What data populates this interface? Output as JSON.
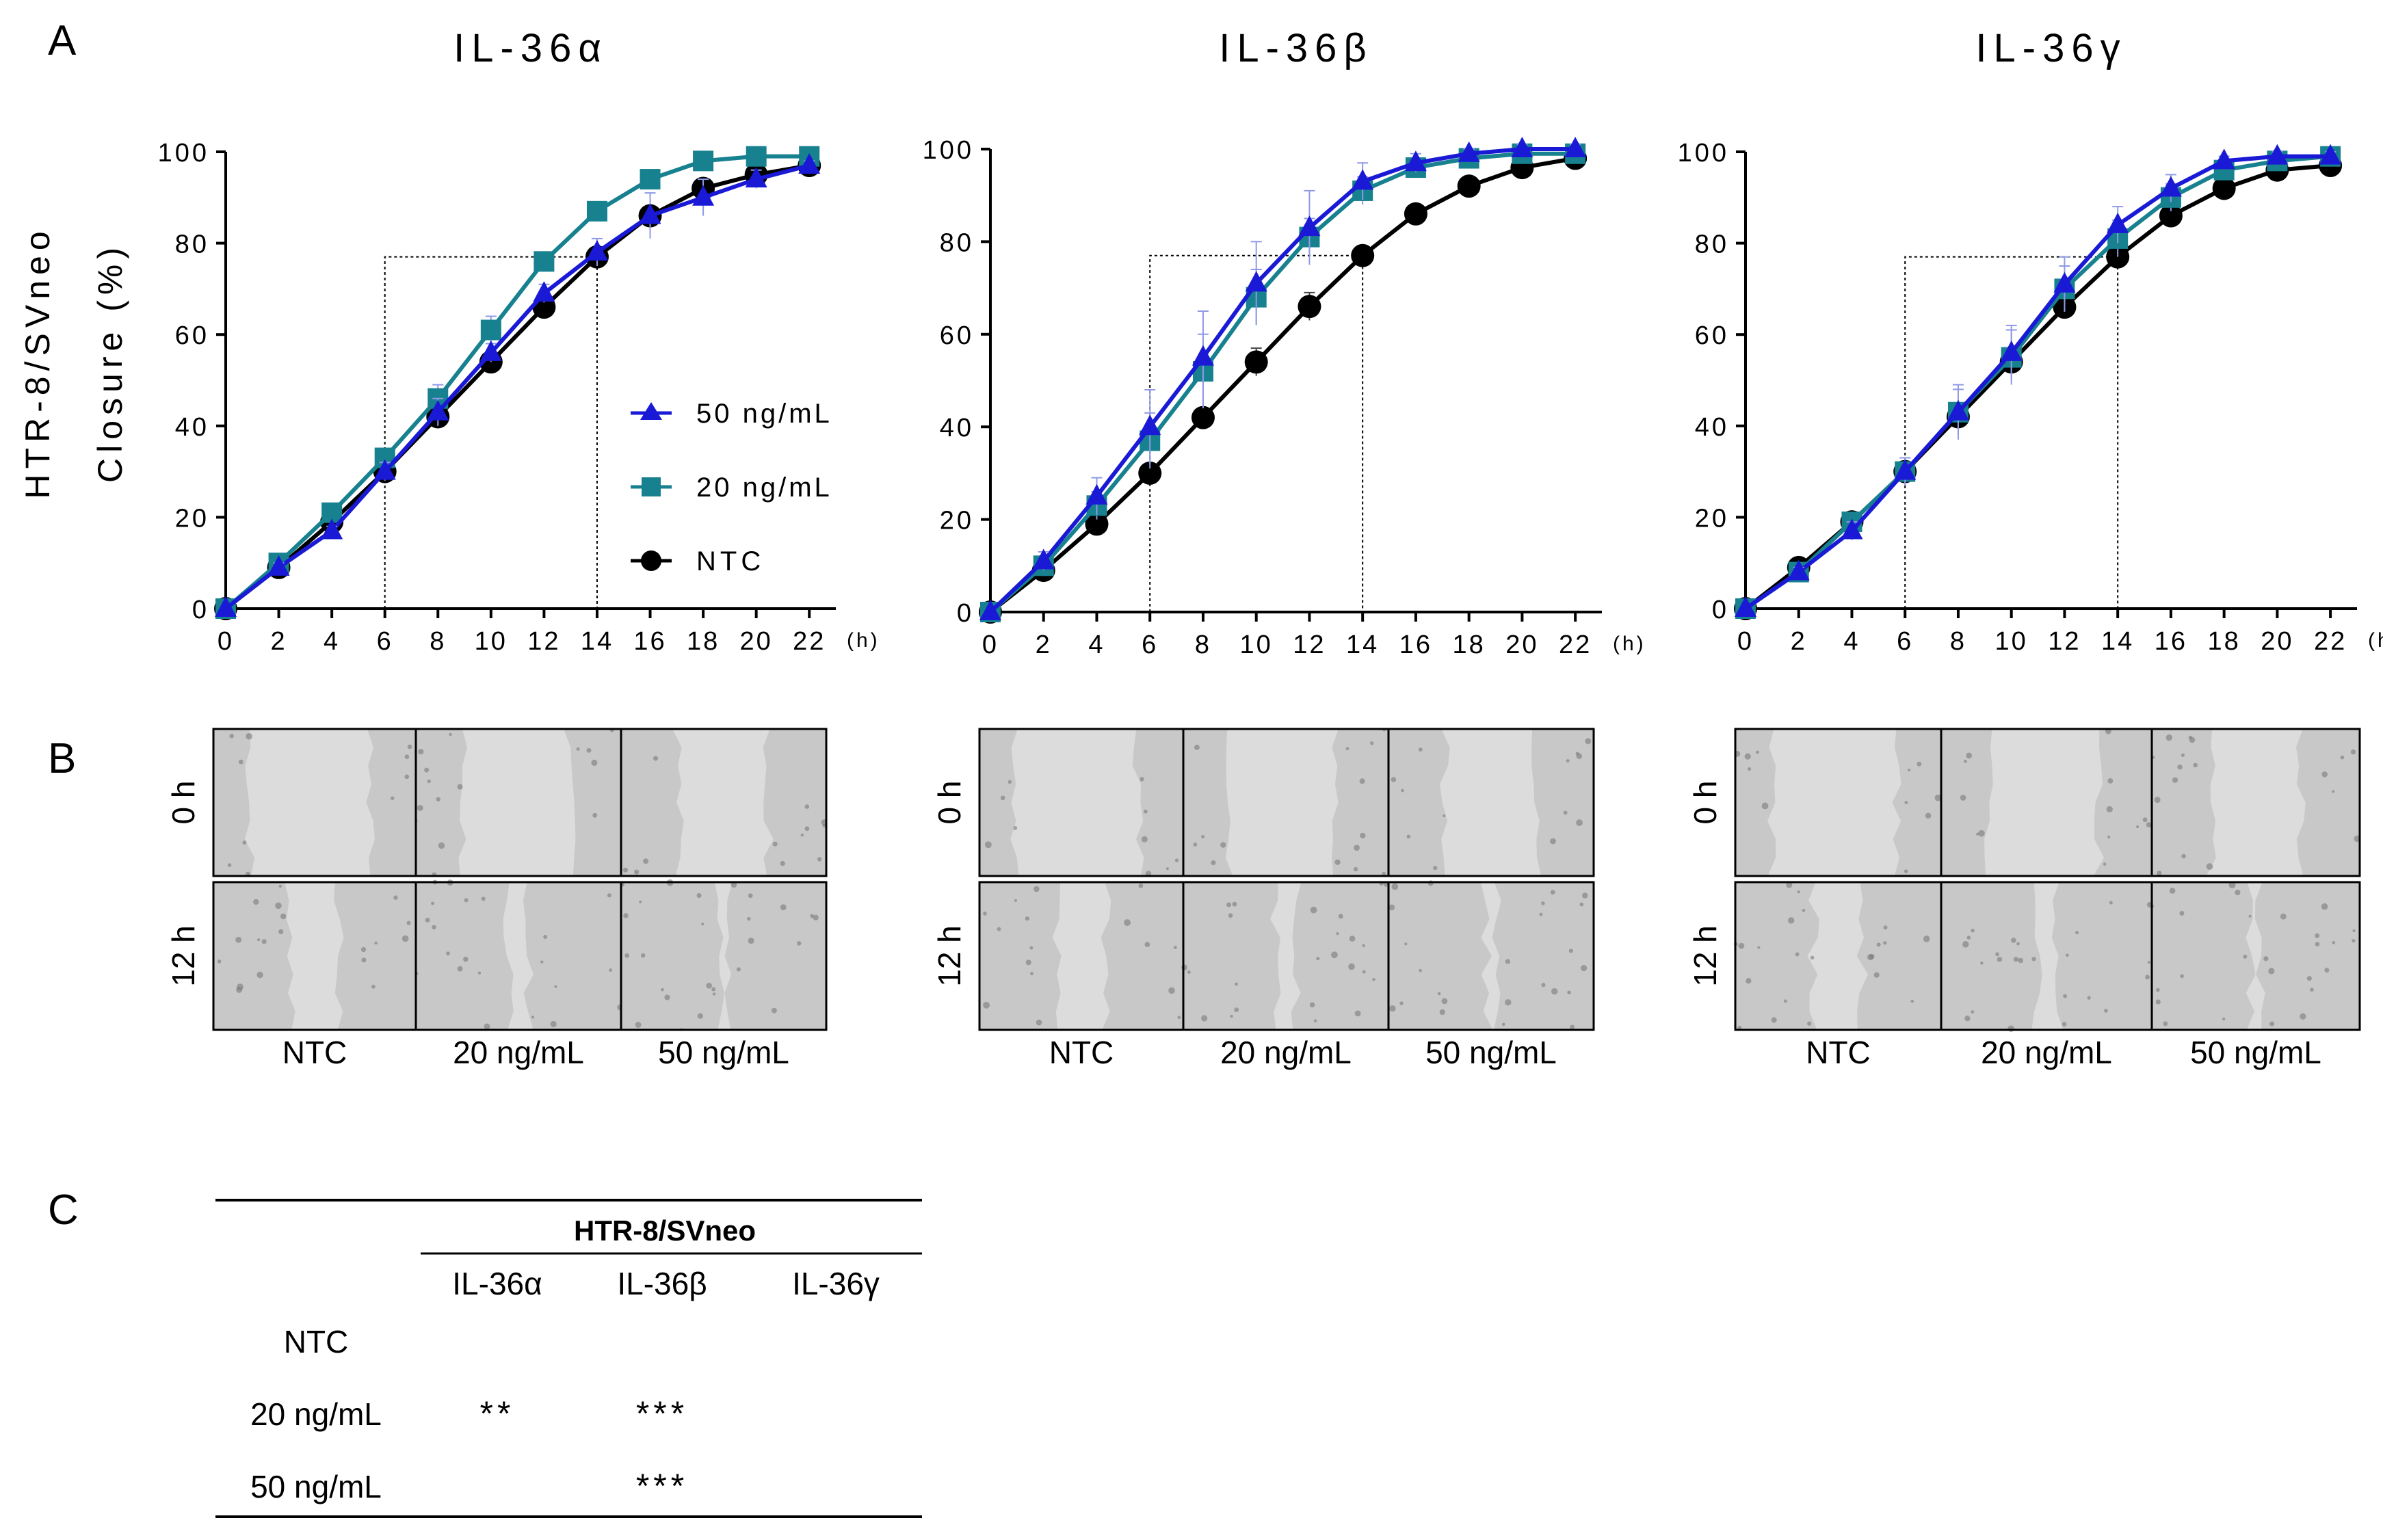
{
  "panel_labels": {
    "a": "A",
    "b": "B",
    "c": "C"
  },
  "y_axis_label": {
    "line1": "HTR-8/SVneo",
    "line2": "Closure (%)"
  },
  "x_unit": "(h)",
  "legend": {
    "s50": "50 ng/mL",
    "s20": "20 ng/mL",
    "ntc": "NTC"
  },
  "colors": {
    "s50": "#1a1ad6",
    "s20": "#17818f",
    "ntc": "#000000",
    "errorbar": "#8f9ae6",
    "image_bg": "#c8c8c8",
    "wound": "#dcdcdc"
  },
  "chart_data": [
    {
      "type": "line",
      "title": "IL-36α",
      "x": [
        0,
        2,
        4,
        6,
        8,
        10,
        12,
        14,
        16,
        18,
        20,
        22
      ],
      "xlabel": "(h)",
      "ylabel": "HTR-8/SVneo Closure (%)",
      "xlim": [
        0,
        23
      ],
      "ylim": [
        0,
        100
      ],
      "yticks": [
        0,
        20,
        40,
        60,
        80,
        100
      ],
      "xticks": [
        0,
        2,
        4,
        6,
        8,
        10,
        12,
        14,
        16,
        18,
        20,
        22
      ],
      "guide": {
        "x_start": 6,
        "x_end": 14,
        "y": 77
      },
      "legend_position": "middle-right",
      "series": [
        {
          "name": "50 ng/mL",
          "marker": "triangle",
          "values": [
            0,
            9,
            17,
            30,
            43,
            56,
            69,
            78,
            86,
            90,
            94,
            97
          ],
          "errors": [
            0,
            1,
            1,
            2,
            3,
            2,
            2,
            3,
            5,
            4,
            2,
            1
          ]
        },
        {
          "name": "20 ng/mL",
          "marker": "square",
          "values": [
            0,
            10,
            21,
            33,
            46,
            61,
            76,
            87,
            94,
            98,
            99,
            99
          ],
          "errors": [
            0,
            1,
            2,
            2,
            3,
            3,
            2,
            1,
            1,
            1,
            1,
            1
          ]
        },
        {
          "name": "NTC",
          "marker": "circle",
          "values": [
            0,
            9,
            19,
            30,
            42,
            54,
            66,
            77,
            86,
            92,
            95,
            97
          ],
          "errors": [
            0,
            1,
            1,
            2,
            2,
            2,
            2,
            2,
            2,
            1,
            1,
            1
          ]
        }
      ]
    },
    {
      "type": "line",
      "title": "IL-36β",
      "x": [
        0,
        2,
        4,
        6,
        8,
        10,
        12,
        14,
        16,
        18,
        20,
        22
      ],
      "xlabel": "(h)",
      "ylabel": "",
      "xlim": [
        0,
        23
      ],
      "ylim": [
        0,
        100
      ],
      "yticks": [
        0,
        20,
        40,
        60,
        80,
        100
      ],
      "xticks": [
        0,
        2,
        4,
        6,
        8,
        10,
        12,
        14,
        16,
        18,
        20,
        22
      ],
      "guide": {
        "x_start": 6,
        "x_end": 14,
        "y": 77
      },
      "series": [
        {
          "name": "50 ng/mL",
          "marker": "triangle",
          "values": [
            0,
            11,
            25,
            40,
            55,
            71,
            83,
            93,
            97,
            99,
            100,
            100
          ],
          "errors": [
            0,
            2,
            4,
            8,
            10,
            9,
            8,
            4,
            2,
            1,
            1,
            1
          ]
        },
        {
          "name": "20 ng/mL",
          "marker": "square",
          "values": [
            0,
            10,
            23,
            37,
            52,
            68,
            81,
            91,
            96,
            98,
            99,
            99
          ],
          "errors": [
            0,
            2,
            3,
            6,
            8,
            6,
            4,
            3,
            2,
            1,
            1,
            1
          ]
        },
        {
          "name": "NTC",
          "marker": "circle",
          "values": [
            0,
            9,
            19,
            30,
            42,
            54,
            66,
            77,
            86,
            92,
            96,
            98
          ],
          "errors": [
            0,
            1,
            1,
            2,
            2,
            3,
            3,
            2,
            2,
            1,
            1,
            1
          ]
        }
      ]
    },
    {
      "type": "line",
      "title": "IL-36γ",
      "x": [
        0,
        2,
        4,
        6,
        8,
        10,
        12,
        14,
        16,
        18,
        20,
        22
      ],
      "xlabel": "(h)",
      "ylabel": "",
      "xlim": [
        0,
        23
      ],
      "ylim": [
        0,
        100
      ],
      "yticks": [
        0,
        20,
        40,
        60,
        80,
        100
      ],
      "xticks": [
        0,
        2,
        4,
        6,
        8,
        10,
        12,
        14,
        16,
        18,
        20,
        22
      ],
      "guide": {
        "x_start": 6,
        "x_end": 14,
        "y": 77
      },
      "series": [
        {
          "name": "50 ng/mL",
          "marker": "triangle",
          "values": [
            0,
            8,
            17,
            30,
            43,
            56,
            71,
            84,
            92,
            98,
            99,
            99
          ],
          "errors": [
            0,
            1,
            2,
            3,
            6,
            6,
            6,
            4,
            3,
            1,
            1,
            1
          ]
        },
        {
          "name": "20 ng/mL",
          "marker": "square",
          "values": [
            0,
            8,
            19,
            30,
            43,
            55,
            70,
            81,
            90,
            96,
            98,
            99
          ],
          "errors": [
            0,
            1,
            2,
            3,
            5,
            6,
            5,
            4,
            3,
            1,
            1,
            1
          ]
        },
        {
          "name": "NTC",
          "marker": "circle",
          "values": [
            0,
            9,
            19,
            30,
            42,
            54,
            66,
            77,
            86,
            92,
            96,
            97
          ],
          "errors": [
            0,
            1,
            1,
            2,
            2,
            2,
            2,
            2,
            2,
            1,
            1,
            1
          ]
        }
      ]
    }
  ],
  "micrographs": {
    "row_labels": [
      "0 h",
      "12 h"
    ],
    "col_labels": [
      "NTC",
      "20 ng/mL",
      "50 ng/mL"
    ],
    "wound_remaining": [
      [
        [
          1,
          1,
          1
        ],
        [
          1,
          1,
          1
        ]
      ],
      [
        [
          1,
          1,
          1
        ],
        [
          1,
          1,
          1
        ]
      ],
      [
        [
          1,
          1,
          1
        ],
        [
          1,
          1,
          1
        ]
      ]
    ]
  },
  "table": {
    "group_header": "HTR-8/SVneo",
    "columns": [
      "IL-36α",
      "IL-36β",
      "IL-36γ"
    ],
    "rows": [
      {
        "label": "NTC",
        "cells": [
          "",
          "",
          ""
        ]
      },
      {
        "label": "20 ng/mL",
        "cells": [
          "**",
          "***",
          ""
        ]
      },
      {
        "label": "50 ng/mL",
        "cells": [
          "",
          "***",
          ""
        ]
      }
    ]
  }
}
